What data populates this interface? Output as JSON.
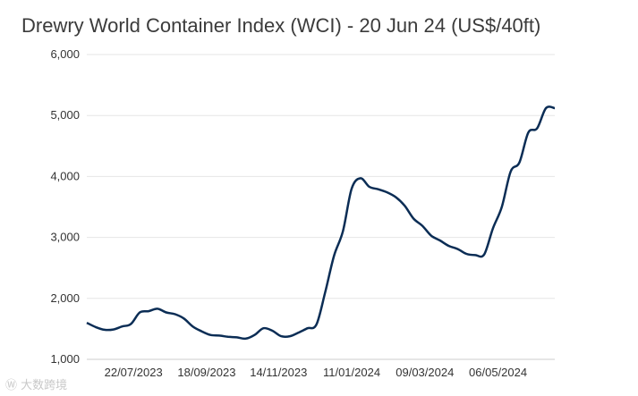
{
  "chart_data": {
    "type": "line",
    "title": "Drewry World Container Index (WCI) - 20 Jun 24 (US$/40ft)",
    "xlabel": "",
    "ylabel": "",
    "ylim": [
      1000,
      6000
    ],
    "yticks": [
      "1,000",
      "2,000",
      "3,000",
      "4,000",
      "5,000",
      "6,000"
    ],
    "xticks": [
      "22/07/2023",
      "18/09/2023",
      "14/11/2023",
      "11/01/2024",
      "09/03/2024",
      "06/05/2024"
    ],
    "grid": true,
    "legend": "none",
    "series": [
      {
        "color": "#0b2d55",
        "x": [
          "15/06/2023",
          "22/06/2023",
          "29/06/2023",
          "06/07/2023",
          "13/07/2023",
          "20/07/2023",
          "27/07/2023",
          "03/08/2023",
          "10/08/2023",
          "17/08/2023",
          "24/08/2023",
          "31/08/2023",
          "07/09/2023",
          "14/09/2023",
          "21/09/2023",
          "28/09/2023",
          "05/10/2023",
          "12/10/2023",
          "19/10/2023",
          "26/10/2023",
          "02/11/2023",
          "09/11/2023",
          "16/11/2023",
          "23/11/2023",
          "30/11/2023",
          "07/12/2023",
          "14/12/2023",
          "21/12/2023",
          "28/12/2023",
          "04/01/2024",
          "11/01/2024",
          "18/01/2024",
          "25/01/2024",
          "01/02/2024",
          "08/02/2024",
          "15/02/2024",
          "22/02/2024",
          "29/02/2024",
          "07/03/2024",
          "14/03/2024",
          "21/03/2024",
          "28/03/2024",
          "04/04/2024",
          "11/04/2024",
          "18/04/2024",
          "25/04/2024",
          "02/05/2024",
          "09/05/2024",
          "16/05/2024",
          "23/05/2024",
          "30/05/2024",
          "06/06/2024",
          "13/06/2024",
          "20/06/2024"
        ],
        "values": [
          1600,
          1530,
          1485,
          1490,
          1540,
          1580,
          1770,
          1790,
          1830,
          1770,
          1740,
          1670,
          1540,
          1460,
          1400,
          1390,
          1370,
          1360,
          1340,
          1400,
          1510,
          1470,
          1380,
          1380,
          1440,
          1510,
          1570,
          2100,
          2700,
          3100,
          3800,
          3970,
          3830,
          3790,
          3740,
          3660,
          3520,
          3310,
          3190,
          3030,
          2950,
          2860,
          2810,
          2730,
          2710,
          2720,
          3150,
          3500,
          4080,
          4230,
          4720,
          4790,
          5120,
          5120
        ]
      }
    ]
  },
  "watermark": "大数跨境",
  "icon": "weibo-icon"
}
